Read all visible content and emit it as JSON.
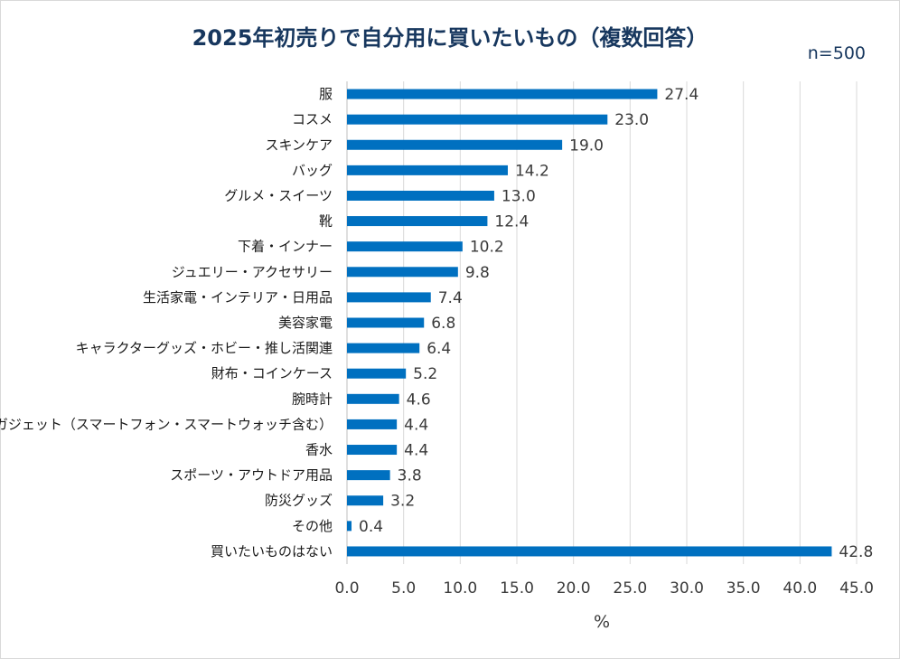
{
  "chart_data": {
    "type": "bar",
    "orientation": "horizontal",
    "title": "2025年初売りで自分用に買いたいもの（複数回答）",
    "sample_note": "n=500",
    "xlabel": "%",
    "ylabel": "",
    "xlim": [
      0,
      45
    ],
    "x_ticks": [
      "0.0",
      "5.0",
      "10.0",
      "15.0",
      "20.0",
      "25.0",
      "30.0",
      "35.0",
      "40.0",
      "45.0"
    ],
    "grid": true,
    "bar_color": "#0070c0",
    "categories": [
      "服",
      "コスメ",
      "スキンケア",
      "バッグ",
      "グルメ・スイーツ",
      "靴",
      "下着・インナー",
      "ジュエリー・アクセサリー",
      "生活家電・インテリア・日用品",
      "美容家電",
      "キャラクターグッズ・ホビー・推し活関連",
      "財布・コインケース",
      "腕時計",
      "ガジェット（スマートフォン・スマートウォッチ含む）",
      "香水",
      "スポーツ・アウトドア用品",
      "防災グッズ",
      "その他",
      "買いたいものはない"
    ],
    "values": [
      27.4,
      23.0,
      19.0,
      14.2,
      13.0,
      12.4,
      10.2,
      9.8,
      7.4,
      6.8,
      6.4,
      5.2,
      4.6,
      4.4,
      4.4,
      3.8,
      3.2,
      0.4,
      42.8
    ],
    "value_labels": [
      "27.4",
      "23.0",
      "19.0",
      "14.2",
      "13.0",
      "12.4",
      "10.2",
      "9.8",
      "7.4",
      "6.8",
      "6.4",
      "5.2",
      "4.6",
      "4.4",
      "4.4",
      "3.8",
      "3.2",
      "0.4",
      "42.8"
    ]
  }
}
